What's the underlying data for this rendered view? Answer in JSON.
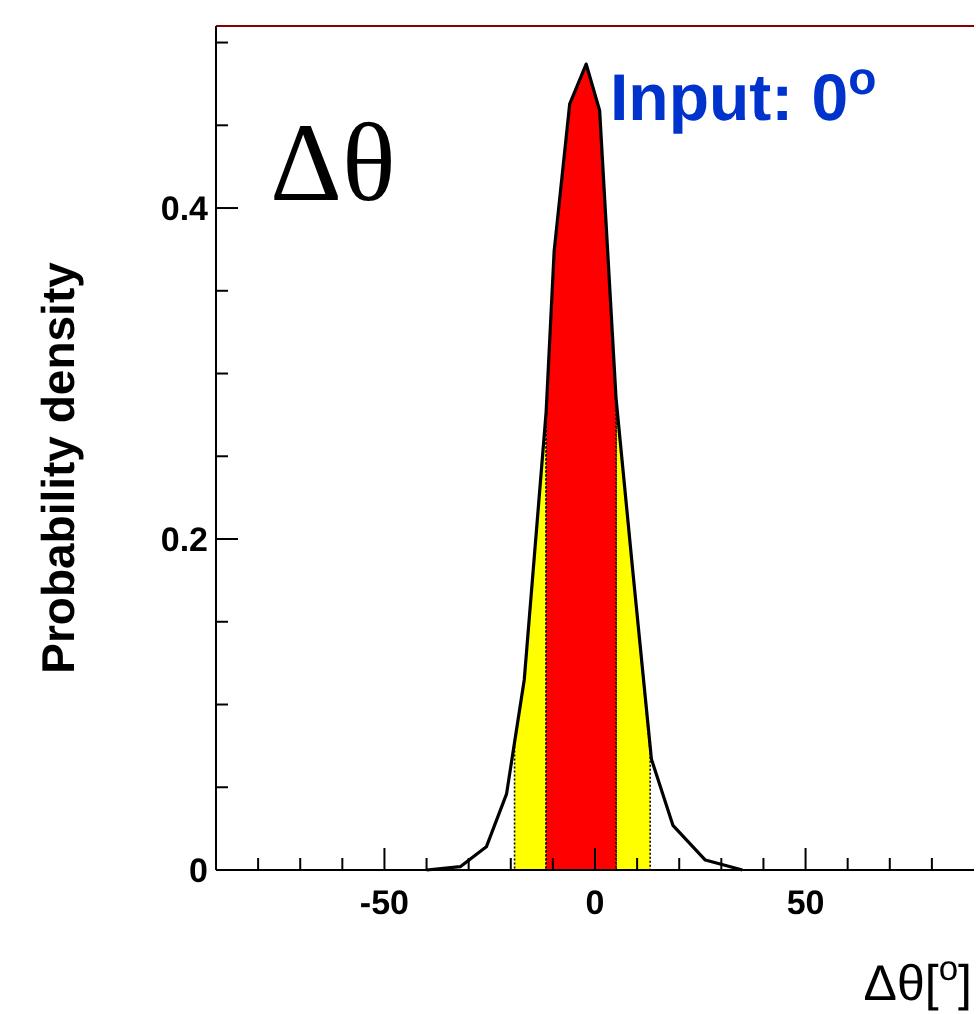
{
  "chart_data": {
    "type": "line",
    "xlabel": "Δθ[$^{o}$]",
    "ylabel": "Probability density",
    "annotations": [
      "Δθ",
      "Input: 0$^{o}$"
    ],
    "xlim": [
      -90,
      90
    ],
    "ylim": [
      0,
      0.51
    ],
    "xticks": [
      {
        "value": -80,
        "label": null
      },
      {
        "value": -70,
        "label": null
      },
      {
        "value": -60,
        "label": null
      },
      -50,
      {
        "value": -40,
        "label": null
      },
      {
        "value": -30,
        "label": null
      },
      {
        "value": -20,
        "label": null
      },
      {
        "value": -10,
        "label": null
      },
      0,
      {
        "value": 10,
        "label": null
      },
      {
        "value": 20,
        "label": null
      },
      {
        "value": 30,
        "label": null
      },
      {
        "value": 40,
        "label": null
      },
      50,
      {
        "value": 60,
        "label": null
      },
      {
        "value": 70,
        "label": null
      },
      {
        "value": 80,
        "label": null
      }
    ],
    "yticks": [
      0,
      {
        "value": 0.05,
        "label": null
      },
      {
        "value": 0.1,
        "label": null
      },
      {
        "value": 0.15,
        "label": null
      },
      0.2,
      {
        "value": 0.25,
        "label": null
      },
      {
        "value": 0.3,
        "label": null
      },
      {
        "value": 0.35,
        "label": null
      },
      0.4,
      {
        "value": 0.45,
        "label": null
      },
      {
        "value": 0.5,
        "label": null
      }
    ],
    "grid": false,
    "series": [
      {
        "type": "area",
        "color": "#ffff00",
        "x": [
          -19.1,
          -16.8,
          -11.6,
          -3,
          5.0,
          9.0,
          13.1
        ],
        "values": [
          0.077,
          0.115,
          0.277,
          null,
          0.285,
          0.18,
          0.071
        ]
      },
      {
        "type": "area",
        "color": "#ff0000",
        "x": [
          -11.6,
          -9.7,
          -6,
          -2.1,
          1.1,
          5.0
        ],
        "values": [
          0.277,
          0.374,
          0.463,
          0.487,
          0.459,
          0.285
        ]
      },
      {
        "color": "#000000",
        "x": [
          -40,
          -32,
          -25.8,
          -21,
          -16.8,
          -11.6,
          -9.7,
          -6,
          -2.1,
          1.1,
          5,
          9,
          13.4,
          18.5,
          26.2,
          35
        ],
        "values": [
          0,
          0.002,
          0.014,
          0.046,
          0.115,
          0.277,
          0.374,
          0.463,
          0.487,
          0.459,
          0.285,
          0.18,
          0.067,
          0.027,
          0.006,
          0
        ]
      }
    ]
  }
}
